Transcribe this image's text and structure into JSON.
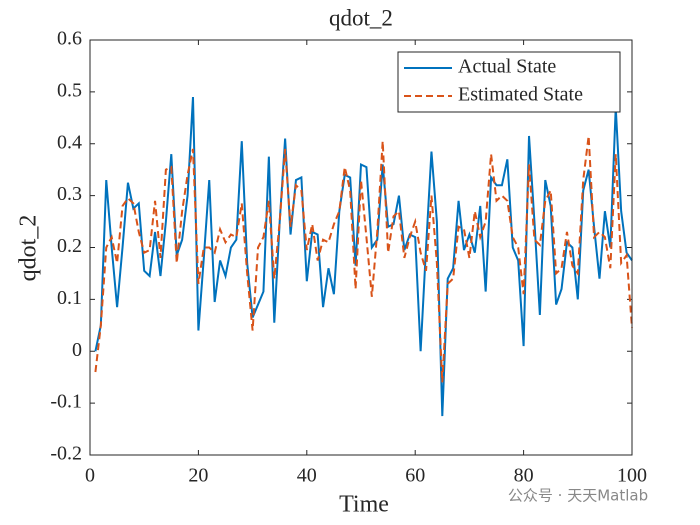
{
  "chart_data": {
    "type": "line",
    "title": "qdot_2",
    "xlabel": "Time",
    "ylabel": "qdot_2",
    "watermark": "公众号 · 天天Matlab",
    "x": [
      1,
      2,
      3,
      4,
      5,
      6,
      7,
      8,
      9,
      10,
      11,
      12,
      13,
      14,
      15,
      16,
      17,
      18,
      19,
      20,
      21,
      22,
      23,
      24,
      25,
      26,
      27,
      28,
      29,
      30,
      31,
      32,
      33,
      34,
      35,
      36,
      37,
      38,
      39,
      40,
      41,
      42,
      43,
      44,
      45,
      46,
      47,
      48,
      49,
      50,
      51,
      52,
      53,
      54,
      55,
      56,
      57,
      58,
      59,
      60,
      61,
      62,
      63,
      64,
      65,
      66,
      67,
      68,
      69,
      70,
      71,
      72,
      73,
      74,
      75,
      76,
      77,
      78,
      79,
      80,
      81,
      82,
      83,
      84,
      85,
      86,
      87,
      88,
      89,
      90,
      91,
      92,
      93,
      94,
      95,
      96,
      97,
      98,
      99,
      100
    ],
    "series": [
      {
        "name": "Actual State",
        "color": "#0072bd",
        "line_style": "solid",
        "values": [
          0.0,
          0.05,
          0.33,
          0.2,
          0.085,
          0.2,
          0.325,
          0.275,
          0.285,
          0.155,
          0.145,
          0.23,
          0.145,
          0.25,
          0.38,
          0.185,
          0.215,
          0.3,
          0.49,
          0.04,
          0.18,
          0.33,
          0.095,
          0.175,
          0.145,
          0.2,
          0.215,
          0.405,
          0.17,
          0.065,
          0.09,
          0.115,
          0.375,
          0.055,
          0.25,
          0.41,
          0.225,
          0.33,
          0.335,
          0.135,
          0.23,
          0.225,
          0.085,
          0.16,
          0.11,
          0.27,
          0.34,
          0.335,
          0.165,
          0.36,
          0.355,
          0.2,
          0.215,
          0.36,
          0.24,
          0.245,
          0.3,
          0.195,
          0.225,
          0.22,
          0.0,
          0.2,
          0.385,
          0.25,
          -0.125,
          0.14,
          0.16,
          0.29,
          0.195,
          0.225,
          0.19,
          0.28,
          0.115,
          0.335,
          0.32,
          0.32,
          0.37,
          0.2,
          0.175,
          0.01,
          0.415,
          0.25,
          0.07,
          0.33,
          0.28,
          0.09,
          0.12,
          0.21,
          0.2,
          0.1,
          0.31,
          0.35,
          0.24,
          0.14,
          0.27,
          0.2,
          0.47,
          0.27,
          0.19,
          0.175
        ]
      },
      {
        "name": "Estimated State",
        "color": "#d95319",
        "line_style": "dashed",
        "values": [
          -0.04,
          0.05,
          0.2,
          0.22,
          0.17,
          0.28,
          0.295,
          0.285,
          0.23,
          0.19,
          0.195,
          0.29,
          0.18,
          0.35,
          0.355,
          0.17,
          0.27,
          0.34,
          0.39,
          0.13,
          0.2,
          0.2,
          0.19,
          0.235,
          0.21,
          0.225,
          0.22,
          0.285,
          0.15,
          0.04,
          0.2,
          0.22,
          0.29,
          0.14,
          0.25,
          0.39,
          0.24,
          0.32,
          0.31,
          0.195,
          0.245,
          0.175,
          0.215,
          0.21,
          0.245,
          0.27,
          0.355,
          0.31,
          0.12,
          0.33,
          0.22,
          0.105,
          0.23,
          0.405,
          0.19,
          0.26,
          0.27,
          0.18,
          0.22,
          0.25,
          0.19,
          0.155,
          0.3,
          0.17,
          -0.06,
          0.13,
          0.14,
          0.24,
          0.235,
          0.18,
          0.27,
          0.22,
          0.25,
          0.38,
          0.29,
          0.3,
          0.29,
          0.22,
          0.2,
          0.11,
          0.36,
          0.215,
          0.205,
          0.29,
          0.31,
          0.15,
          0.16,
          0.23,
          0.165,
          0.15,
          0.33,
          0.415,
          0.22,
          0.23,
          0.22,
          0.16,
          0.38,
          0.17,
          0.185,
          0.045
        ]
      }
    ],
    "xlim": [
      0,
      100
    ],
    "xticks": [
      0,
      20,
      40,
      60,
      80,
      100
    ],
    "ylim": [
      -0.2,
      0.6
    ],
    "yticks": [
      -0.2,
      -0.1,
      0,
      0.1,
      0.2,
      0.3,
      0.4,
      0.5,
      0.6
    ],
    "legend": "northeast",
    "grid": false
  }
}
